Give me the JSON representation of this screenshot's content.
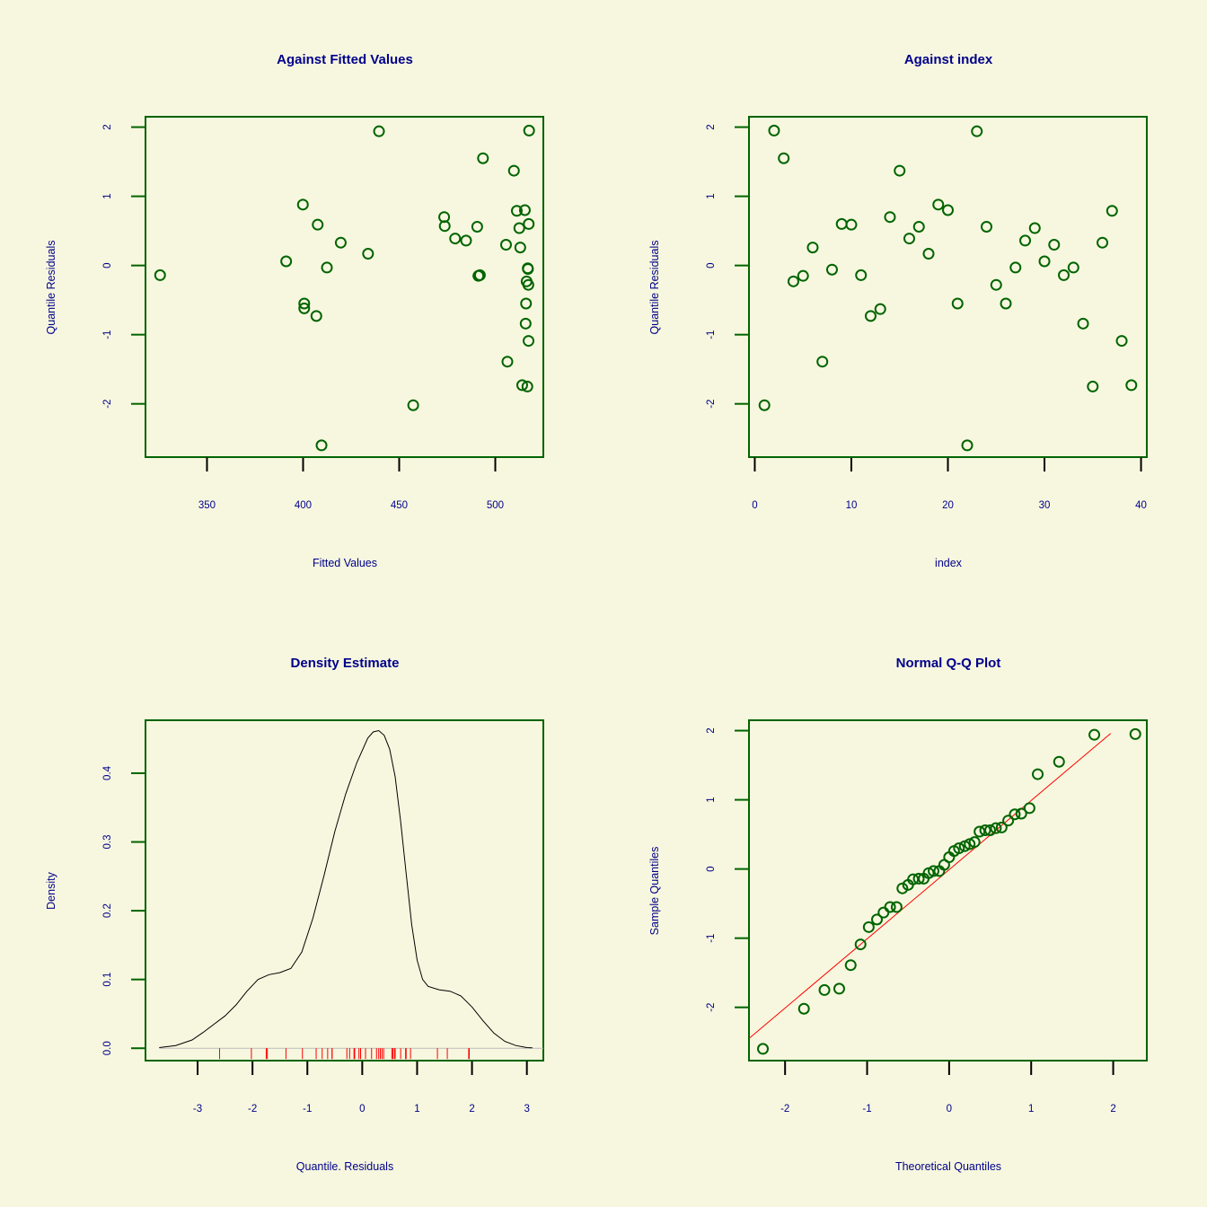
{
  "colors": {
    "background": "#f7f7df",
    "text": "#00008b",
    "frame": "#006400",
    "points": "#006400",
    "reference": "#ff0000",
    "density": "#000000",
    "rug": "#ff0000"
  },
  "chart_data": [
    {
      "type": "scatter",
      "title": "Against Fitted Values",
      "xlabel": "Fitted Values",
      "ylabel": "Quantile Residuals",
      "xlim": [
        318,
        525
      ],
      "ylim": [
        -2.77,
        2.15
      ],
      "xticks": [
        350,
        400,
        450,
        500
      ],
      "yticks": [
        -2,
        -1,
        0,
        1,
        2
      ],
      "points": [
        [
          325.6,
          -0.14
        ],
        [
          391.2,
          0.06
        ],
        [
          399.9,
          0.88
        ],
        [
          400.6,
          -0.55
        ],
        [
          400.6,
          -0.62
        ],
        [
          406.9,
          -0.73
        ],
        [
          407.6,
          0.59
        ],
        [
          409.6,
          -2.6
        ],
        [
          412.4,
          -0.03
        ],
        [
          419.6,
          0.33
        ],
        [
          433.8,
          0.17
        ],
        [
          439.5,
          1.94
        ],
        [
          457.3,
          -2.02
        ],
        [
          473.4,
          0.7
        ],
        [
          473.7,
          0.57
        ],
        [
          479.1,
          0.39
        ],
        [
          484.8,
          0.36
        ],
        [
          490.6,
          0.56
        ],
        [
          491.2,
          -0.15
        ],
        [
          492.0,
          -0.14
        ],
        [
          493.6,
          1.55
        ],
        [
          505.6,
          0.3
        ],
        [
          506.3,
          -1.39
        ],
        [
          509.7,
          1.37
        ],
        [
          511.2,
          0.79
        ],
        [
          512.5,
          0.54
        ],
        [
          513.0,
          0.26
        ],
        [
          514.0,
          -1.73
        ],
        [
          515.4,
          0.8
        ],
        [
          515.8,
          -0.84
        ],
        [
          516.0,
          -0.55
        ],
        [
          516.3,
          -0.23
        ],
        [
          516.7,
          -1.75
        ],
        [
          516.9,
          -0.04
        ],
        [
          517.0,
          -0.05
        ],
        [
          517.2,
          -0.28
        ],
        [
          517.3,
          -1.09
        ],
        [
          517.4,
          0.6
        ],
        [
          517.6,
          1.95
        ]
      ]
    },
    {
      "type": "scatter",
      "title": "Against  index",
      "xlabel": "index",
      "ylabel": "Quantile Residuals",
      "xlim": [
        -0.6,
        40.6
      ],
      "ylim": [
        -2.77,
        2.15
      ],
      "xticks": [
        0,
        10,
        20,
        30,
        40
      ],
      "yticks": [
        -2,
        -1,
        0,
        1,
        2
      ],
      "points": [
        [
          1,
          -2.02
        ],
        [
          2,
          1.95
        ],
        [
          3,
          1.55
        ],
        [
          4,
          -0.23
        ],
        [
          5,
          -0.15
        ],
        [
          6,
          0.26
        ],
        [
          7,
          -1.39
        ],
        [
          8,
          -0.06
        ],
        [
          9,
          0.6
        ],
        [
          10,
          0.59
        ],
        [
          11,
          -0.14
        ],
        [
          12,
          -0.73
        ],
        [
          13,
          -0.63
        ],
        [
          14,
          0.7
        ],
        [
          15,
          1.37
        ],
        [
          16,
          0.39
        ],
        [
          17,
          0.56
        ],
        [
          18,
          0.17
        ],
        [
          19,
          0.88
        ],
        [
          20,
          0.8
        ],
        [
          21,
          -0.55
        ],
        [
          22,
          -2.6
        ],
        [
          23,
          1.94
        ],
        [
          24,
          0.56
        ],
        [
          25,
          -0.28
        ],
        [
          26,
          -0.55
        ],
        [
          27,
          -0.03
        ],
        [
          28,
          0.36
        ],
        [
          29,
          0.54
        ],
        [
          30,
          0.06
        ],
        [
          31,
          0.3
        ],
        [
          32,
          -0.14
        ],
        [
          33,
          -0.03
        ],
        [
          34,
          -0.84
        ],
        [
          35,
          -1.75
        ],
        [
          36,
          0.33
        ],
        [
          37,
          0.79
        ],
        [
          38,
          -1.09
        ],
        [
          39,
          -1.73
        ]
      ]
    },
    {
      "type": "line",
      "title": "Density Estimate",
      "xlabel": "Quantile. Residuals",
      "ylabel": "Density",
      "xlim": [
        -3.95,
        3.3
      ],
      "ylim": [
        -0.018,
        0.477
      ],
      "xticks": [
        -3,
        -2,
        -1,
        0,
        1,
        2,
        3
      ],
      "yticks": [
        0.0,
        0.1,
        0.2,
        0.3,
        0.4
      ],
      "curve": [
        [
          -3.7,
          0.001
        ],
        [
          -3.4,
          0.004
        ],
        [
          -3.1,
          0.012
        ],
        [
          -2.9,
          0.023
        ],
        [
          -2.7,
          0.035
        ],
        [
          -2.5,
          0.047
        ],
        [
          -2.3,
          0.063
        ],
        [
          -2.1,
          0.083
        ],
        [
          -1.9,
          0.1
        ],
        [
          -1.7,
          0.107
        ],
        [
          -1.5,
          0.11
        ],
        [
          -1.3,
          0.116
        ],
        [
          -1.1,
          0.14
        ],
        [
          -0.9,
          0.189
        ],
        [
          -0.7,
          0.25
        ],
        [
          -0.5,
          0.315
        ],
        [
          -0.3,
          0.37
        ],
        [
          -0.1,
          0.415
        ],
        [
          0.1,
          0.451
        ],
        [
          0.2,
          0.46
        ],
        [
          0.3,
          0.462
        ],
        [
          0.4,
          0.455
        ],
        [
          0.5,
          0.435
        ],
        [
          0.6,
          0.395
        ],
        [
          0.7,
          0.33
        ],
        [
          0.8,
          0.255
        ],
        [
          0.9,
          0.18
        ],
        [
          1.0,
          0.128
        ],
        [
          1.1,
          0.1
        ],
        [
          1.2,
          0.09
        ],
        [
          1.4,
          0.085
        ],
        [
          1.6,
          0.083
        ],
        [
          1.8,
          0.076
        ],
        [
          2.0,
          0.06
        ],
        [
          2.2,
          0.04
        ],
        [
          2.4,
          0.022
        ],
        [
          2.6,
          0.01
        ],
        [
          2.8,
          0.004
        ],
        [
          3.0,
          0.001
        ],
        [
          3.1,
          0.0005
        ]
      ],
      "rug": [
        -2.6,
        -2.02,
        -1.75,
        -1.73,
        -1.39,
        -1.09,
        -0.84,
        -0.73,
        -0.63,
        -0.55,
        -0.55,
        -0.28,
        -0.23,
        -0.15,
        -0.14,
        -0.14,
        -0.06,
        -0.03,
        -0.03,
        0.06,
        0.17,
        0.26,
        0.3,
        0.33,
        0.36,
        0.39,
        0.54,
        0.56,
        0.56,
        0.59,
        0.6,
        0.7,
        0.79,
        0.8,
        0.88,
        1.37,
        1.55,
        1.94,
        1.95
      ]
    },
    {
      "type": "scatter",
      "title": "Normal Q-Q Plot",
      "xlabel": "Theoretical Quantiles",
      "ylabel": "Sample Quantiles",
      "xlim": [
        -2.44,
        2.41
      ],
      "ylim": [
        -2.77,
        2.15
      ],
      "xticks": [
        -2,
        -1,
        0,
        1,
        2
      ],
      "yticks": [
        -2,
        -1,
        0,
        1,
        2
      ],
      "points": [
        [
          -2.27,
          -2.6
        ],
        [
          -1.77,
          -2.02
        ],
        [
          -1.52,
          -1.75
        ],
        [
          -1.34,
          -1.73
        ],
        [
          -1.2,
          -1.39
        ],
        [
          -1.08,
          -1.09
        ],
        [
          -0.98,
          -0.84
        ],
        [
          -0.88,
          -0.73
        ],
        [
          -0.8,
          -0.63
        ],
        [
          -0.72,
          -0.55
        ],
        [
          -0.64,
          -0.55
        ],
        [
          -0.57,
          -0.28
        ],
        [
          -0.5,
          -0.23
        ],
        [
          -0.44,
          -0.15
        ],
        [
          -0.37,
          -0.14
        ],
        [
          -0.31,
          -0.14
        ],
        [
          -0.25,
          -0.06
        ],
        [
          -0.19,
          -0.03
        ],
        [
          -0.12,
          -0.03
        ],
        [
          -0.06,
          0.06
        ],
        [
          0.0,
          0.17
        ],
        [
          0.06,
          0.26
        ],
        [
          0.12,
          0.3
        ],
        [
          0.19,
          0.33
        ],
        [
          0.25,
          0.36
        ],
        [
          0.31,
          0.39
        ],
        [
          0.37,
          0.54
        ],
        [
          0.44,
          0.56
        ],
        [
          0.5,
          0.56
        ],
        [
          0.57,
          0.59
        ],
        [
          0.64,
          0.6
        ],
        [
          0.72,
          0.7
        ],
        [
          0.8,
          0.79
        ],
        [
          0.88,
          0.8
        ],
        [
          0.98,
          0.88
        ],
        [
          1.08,
          1.37
        ],
        [
          1.34,
          1.55
        ],
        [
          1.77,
          1.94
        ],
        [
          2.27,
          1.95
        ]
      ],
      "reference_line": [
        [
          -2.44,
          -2.45
        ],
        [
          1.97,
          1.96
        ]
      ]
    }
  ]
}
